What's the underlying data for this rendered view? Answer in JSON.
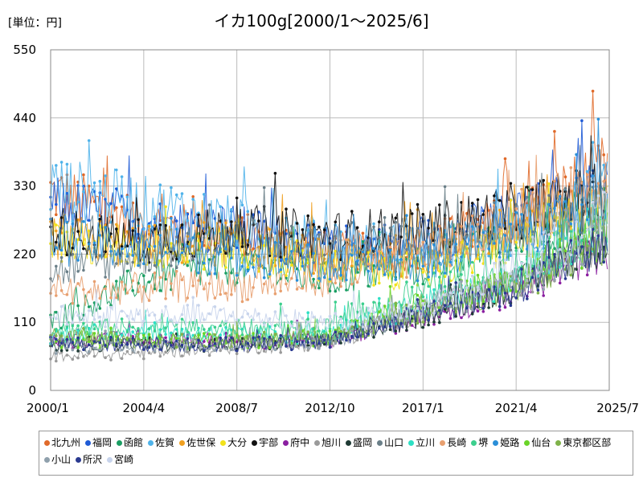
{
  "chart_data": {
    "type": "line",
    "unit_label": "[単位：円]",
    "title": "イカ100g[2000/1～2025/6]",
    "x_start": "2000-01",
    "x_end": "2025-06",
    "x_ticks": [
      "2000/1",
      "2004/4",
      "2008/7",
      "2012/10",
      "2017/1",
      "2021/4",
      "2025/7"
    ],
    "y_ticks": [
      "0",
      "110",
      "220",
      "330",
      "440",
      "550"
    ],
    "ylim": [
      0,
      550
    ],
    "grid": true,
    "legend_position": "bottom",
    "series": [
      {
        "name": "北九州",
        "color": "#e06a2a",
        "keypoints": [
          [
            "2000-01",
            320
          ],
          [
            "2004-04",
            270
          ],
          [
            "2008-07",
            250
          ],
          [
            "2012-10",
            220
          ],
          [
            "2017-01",
            230
          ],
          [
            "2021-04",
            280
          ],
          [
            "2025-06",
            360
          ]
        ]
      },
      {
        "name": "福岡",
        "color": "#1f5bd6",
        "keypoints": [
          [
            "2000-01",
            300
          ],
          [
            "2004-04",
            270
          ],
          [
            "2008-07",
            260
          ],
          [
            "2012-10",
            230
          ],
          [
            "2017-01",
            240
          ],
          [
            "2021-04",
            280
          ],
          [
            "2025-06",
            330
          ]
        ]
      },
      {
        "name": "函館",
        "color": "#1a9e63",
        "keypoints": [
          [
            "2000-01",
            110
          ],
          [
            "2004-04",
            180
          ],
          [
            "2008-07",
            200
          ],
          [
            "2012-10",
            180
          ],
          [
            "2017-01",
            200
          ],
          [
            "2021-04",
            240
          ],
          [
            "2025-06",
            300
          ]
        ]
      },
      {
        "name": "佐賀",
        "color": "#4fb3ea",
        "keypoints": [
          [
            "2000-01",
            330
          ],
          [
            "2004-04",
            300
          ],
          [
            "2008-07",
            270
          ],
          [
            "2012-10",
            240
          ],
          [
            "2017-01",
            230
          ],
          [
            "2021-04",
            260
          ],
          [
            "2025-06",
            320
          ]
        ]
      },
      {
        "name": "佐世保",
        "color": "#f0a020",
        "keypoints": [
          [
            "2000-01",
            250
          ],
          [
            "2004-04",
            230
          ],
          [
            "2008-07",
            240
          ],
          [
            "2012-10",
            210
          ],
          [
            "2017-01",
            220
          ],
          [
            "2021-04",
            260
          ],
          [
            "2025-06",
            310
          ]
        ]
      },
      {
        "name": "大分",
        "color": "#f2e21a",
        "keypoints": [
          [
            "2000-01",
            240
          ],
          [
            "2004-04",
            230
          ],
          [
            "2008-07",
            230
          ],
          [
            "2012-10",
            200
          ],
          [
            "2017-01",
            190
          ],
          [
            "2021-04",
            240
          ],
          [
            "2025-06",
            300
          ]
        ]
      },
      {
        "name": "宇部",
        "color": "#111111",
        "keypoints": [
          [
            "2000-01",
            260
          ],
          [
            "2004-04",
            240
          ],
          [
            "2008-07",
            260
          ],
          [
            "2012-10",
            250
          ],
          [
            "2017-01",
            260
          ],
          [
            "2021-04",
            290
          ],
          [
            "2025-06",
            320
          ]
        ]
      },
      {
        "name": "府中",
        "color": "#8a1fa0",
        "keypoints": [
          [
            "2000-01",
            80
          ],
          [
            "2004-04",
            85
          ],
          [
            "2008-07",
            80
          ],
          [
            "2012-10",
            80
          ],
          [
            "2017-01",
            120
          ],
          [
            "2021-04",
            160
          ],
          [
            "2025-06",
            230
          ]
        ]
      },
      {
        "name": "旭川",
        "color": "#9a9a9a",
        "keypoints": [
          [
            "2000-01",
            55
          ],
          [
            "2004-04",
            60
          ],
          [
            "2008-07",
            70
          ],
          [
            "2012-10",
            75
          ],
          [
            "2017-01",
            130
          ],
          [
            "2021-04",
            170
          ],
          [
            "2025-06",
            250
          ]
        ]
      },
      {
        "name": "盛岡",
        "color": "#1e3a34",
        "keypoints": [
          [
            "2000-01",
            75
          ],
          [
            "2004-04",
            75
          ],
          [
            "2008-07",
            75
          ],
          [
            "2012-10",
            80
          ],
          [
            "2017-01",
            120
          ],
          [
            "2021-04",
            170
          ],
          [
            "2025-06",
            240
          ]
        ]
      },
      {
        "name": "山口",
        "color": "#6a7f88",
        "keypoints": [
          [
            "2000-01",
            190
          ],
          [
            "2004-04",
            220
          ],
          [
            "2008-07",
            240
          ],
          [
            "2012-10",
            230
          ],
          [
            "2017-01",
            250
          ],
          [
            "2021-04",
            270
          ],
          [
            "2025-06",
            300
          ]
        ]
      },
      {
        "name": "立川",
        "color": "#2de0c4",
        "keypoints": [
          [
            "2000-01",
            90
          ],
          [
            "2004-04",
            95
          ],
          [
            "2008-07",
            90
          ],
          [
            "2012-10",
            90
          ],
          [
            "2017-01",
            140
          ],
          [
            "2021-04",
            180
          ],
          [
            "2025-06",
            260
          ]
        ]
      },
      {
        "name": "長崎",
        "color": "#e8a070",
        "keypoints": [
          [
            "2000-01",
            160
          ],
          [
            "2004-04",
            165
          ],
          [
            "2008-07",
            170
          ],
          [
            "2012-10",
            180
          ],
          [
            "2017-01",
            220
          ],
          [
            "2021-04",
            270
          ],
          [
            "2025-06",
            340
          ]
        ]
      },
      {
        "name": "堺",
        "color": "#3ccf8e",
        "keypoints": [
          [
            "2000-01",
            100
          ],
          [
            "2004-04",
            100
          ],
          [
            "2008-07",
            100
          ],
          [
            "2012-10",
            100
          ],
          [
            "2017-01",
            160
          ],
          [
            "2021-04",
            200
          ],
          [
            "2025-06",
            270
          ]
        ]
      },
      {
        "name": "姫路",
        "color": "#2a8fd8",
        "keypoints": [
          [
            "2000-01",
            240
          ],
          [
            "2004-04",
            230
          ],
          [
            "2008-07",
            220
          ],
          [
            "2012-10",
            200
          ],
          [
            "2017-01",
            210
          ],
          [
            "2021-04",
            250
          ],
          [
            "2025-06",
            320
          ]
        ]
      },
      {
        "name": "仙台",
        "color": "#6ad428",
        "keypoints": [
          [
            "2000-01",
            80
          ],
          [
            "2004-04",
            80
          ],
          [
            "2008-07",
            80
          ],
          [
            "2012-10",
            85
          ],
          [
            "2017-01",
            140
          ],
          [
            "2021-04",
            180
          ],
          [
            "2025-06",
            250
          ]
        ]
      },
      {
        "name": "東京都区部",
        "color": "#7fb24a",
        "keypoints": [
          [
            "2000-01",
            90
          ],
          [
            "2004-04",
            80
          ],
          [
            "2008-07",
            80
          ],
          [
            "2012-10",
            85
          ],
          [
            "2017-01",
            130
          ],
          [
            "2021-04",
            170
          ],
          [
            "2025-06",
            240
          ]
        ]
      },
      {
        "name": "小山",
        "color": "#8fa0ac",
        "keypoints": [
          [
            "2000-01",
            70
          ],
          [
            "2004-04",
            70
          ],
          [
            "2008-07",
            75
          ],
          [
            "2012-10",
            80
          ],
          [
            "2017-01",
            130
          ],
          [
            "2021-04",
            170
          ],
          [
            "2025-06",
            250
          ]
        ]
      },
      {
        "name": "所沢",
        "color": "#2a3a90",
        "keypoints": [
          [
            "2000-01",
            75
          ],
          [
            "2004-04",
            75
          ],
          [
            "2008-07",
            75
          ],
          [
            "2012-10",
            80
          ],
          [
            "2017-01",
            125
          ],
          [
            "2021-04",
            165
          ],
          [
            "2025-06",
            240
          ]
        ]
      },
      {
        "name": "宮崎",
        "color": "#c8d4ec",
        "keypoints": [
          [
            "2000-01",
            120
          ],
          [
            "2004-04",
            120
          ],
          [
            "2008-07",
            120
          ],
          [
            "2012-10",
            110
          ],
          [
            "2017-01",
            130
          ],
          [
            "2021-04",
            200
          ],
          [
            "2025-06",
            280
          ]
        ]
      }
    ]
  }
}
